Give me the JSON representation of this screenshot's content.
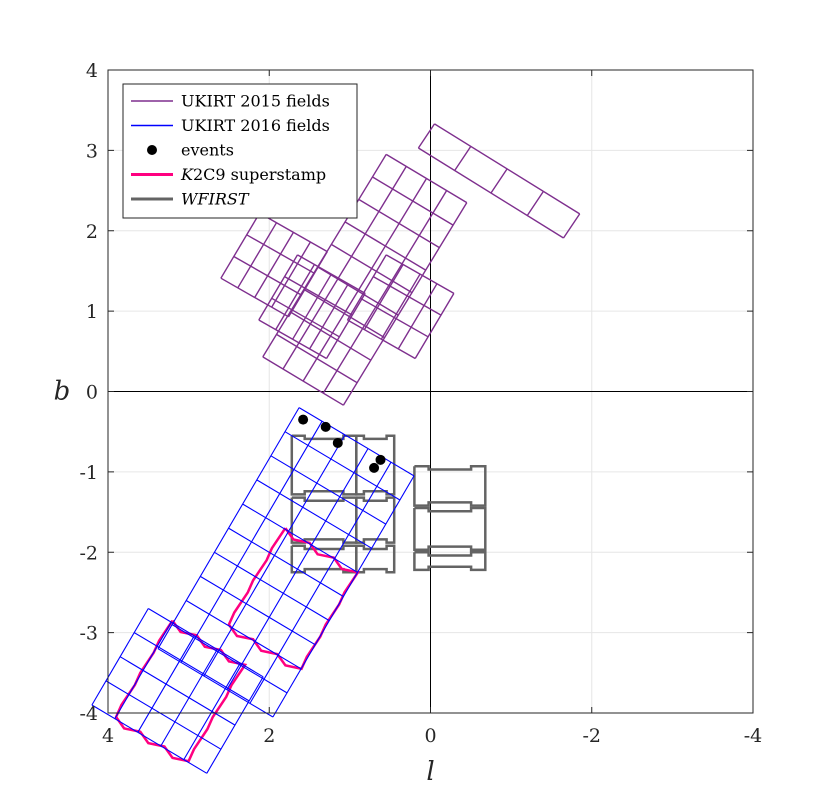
{
  "chart_data": {
    "type": "scatter",
    "xlabel": "l",
    "ylabel": "b",
    "xlim": [
      4,
      -4
    ],
    "ylim": [
      -4,
      4
    ],
    "x_reversed": true,
    "xticks": [
      4,
      2,
      0,
      -2,
      -4
    ],
    "yticks": [
      4,
      3,
      2,
      1,
      0,
      -1,
      -2,
      -3,
      -4
    ],
    "xtick_labels": [
      "4",
      "2",
      "0",
      "-2",
      "-4"
    ],
    "ytick_labels": [
      "4",
      "3",
      "2",
      "1",
      "0",
      "-1",
      "-2",
      "-3",
      "-4"
    ],
    "grid": true,
    "legend_position": "top-left",
    "legend": [
      {
        "label": "UKIRT 2015 fields",
        "color": "#7e2f8e",
        "style": "line-thin"
      },
      {
        "label": "UKIRT 2016 fields",
        "color": "#0000ff",
        "style": "line-thin"
      },
      {
        "label": "events",
        "color": "#000000",
        "style": "marker"
      },
      {
        "label_italic": "K",
        "label_rest": "2C9 superstamp",
        "color": "#ff0080",
        "style": "line-thick"
      },
      {
        "label_italic": "WFIRST",
        "label_rest": "",
        "color": "#646464",
        "style": "line-thick"
      }
    ],
    "series": [
      {
        "name": "UKIRT 2015 fields",
        "color": "#7e2f8e",
        "grids": [
          {
            "corner": [
              -0.05,
              3.33
            ],
            "u": [
              -0.45,
              -0.28
            ],
            "v": [
              0.2,
              -0.3
            ],
            "nu": 4,
            "nv": 1
          },
          {
            "corner": [
              0.55,
              2.95
            ],
            "u": [
              -0.25,
              -0.15
            ],
            "v": [
              0.17,
              -0.28
            ],
            "nu": 4,
            "nv": 9
          },
          {
            "corner": [
              0.55,
              1.7
            ],
            "u": [
              -0.21,
              -0.12
            ],
            "v": [
              0.16,
              -0.27
            ],
            "nu": 4,
            "nv": 3
          },
          {
            "corner": [
              1.65,
              1.7
            ],
            "u": [
              -0.21,
              -0.12
            ],
            "v": [
              0.16,
              -0.27
            ],
            "nu": 4,
            "nv": 3
          },
          {
            "corner": [
              2.12,
              2.22
            ],
            "u": [
              -0.21,
              -0.12
            ],
            "v": [
              0.16,
              -0.27
            ],
            "nu": 4,
            "nv": 3
          }
        ]
      },
      {
        "name": "UKIRT 2016 fields",
        "color": "#0000ff",
        "grids": [
          {
            "corner": [
              1.63,
              -0.2
            ],
            "u": [
              -0.285,
              -0.17
            ],
            "v": [
              0.175,
              -0.3
            ],
            "nu": 5,
            "nv": 10
          },
          {
            "corner": [
              3.5,
              -2.7
            ],
            "u": [
              -0.285,
              -0.17
            ],
            "v": [
              0.175,
              -0.3
            ],
            "nu": 5,
            "nv": 4
          }
        ]
      },
      {
        "name": "events",
        "color": "#000000",
        "x": [
          1.58,
          1.3,
          1.15,
          0.7,
          0.62
        ],
        "y": [
          -0.35,
          -0.44,
          -0.64,
          -0.95,
          -0.85
        ]
      },
      {
        "name": "K2C9 superstamp",
        "color": "#ff0080",
        "outlines": [
          {
            "corner": [
              1.8,
              -1.7
            ],
            "u": [
              -0.9,
              -0.55
            ],
            "v": [
              0.7,
              -1.2
            ]
          },
          {
            "corner": [
              3.2,
              -2.85
            ],
            "u": [
              -0.9,
              -0.55
            ],
            "v": [
              0.7,
              -1.2
            ]
          }
        ]
      },
      {
        "name": "WFIRST",
        "color": "#646464",
        "columns": [
          {
            "x0": 1.72,
            "x1": 0.92,
            "rows": [
              [
                -0.55,
                -1.28
              ],
              [
                -1.32,
                -1.88
              ],
              [
                -1.92,
                -2.25
              ]
            ]
          },
          {
            "x0": 0.92,
            "x1": 0.45,
            "rows": [
              [
                -0.55,
                -1.28
              ],
              [
                -1.32,
                -1.88
              ],
              [
                -1.92,
                -2.25
              ]
            ]
          },
          {
            "x0": 0.2,
            "x1": -0.68,
            "rows": [
              [
                -0.93,
                -1.42
              ],
              [
                -1.45,
                -1.97
              ],
              [
                -2.0,
                -2.22
              ]
            ]
          }
        ]
      }
    ]
  }
}
